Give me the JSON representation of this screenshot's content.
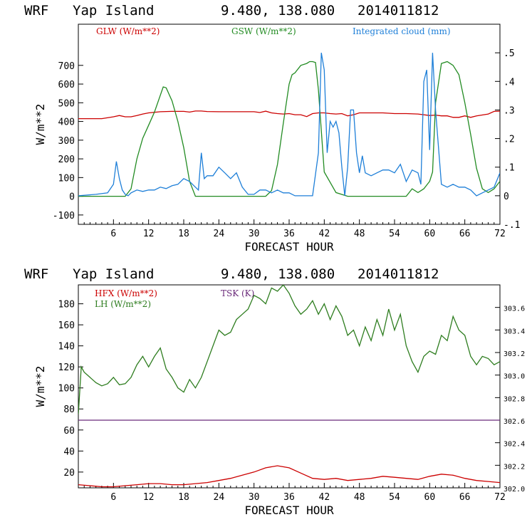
{
  "header": {
    "model": "WRF",
    "location": "Yap Island",
    "coords": "9.480, 138.080",
    "init": "2014011812"
  },
  "chart_data": [
    {
      "type": "line",
      "title": "WRF Yap Island 9.480, 138.080 2014011812",
      "xlabel": "FORECAST HOUR",
      "ylabel": "W/m**2",
      "y2label": "",
      "xlim": [
        0,
        72
      ],
      "ylim": [
        -150,
        920
      ],
      "y2lim": [
        -0.1,
        0.6
      ],
      "xticks": [
        6,
        12,
        18,
        24,
        30,
        36,
        42,
        48,
        54,
        60,
        66,
        72
      ],
      "yticks": [
        -100,
        0,
        100,
        200,
        300,
        400,
        500,
        600,
        700
      ],
      "ytick_labels": [
        "-100",
        "0",
        "100",
        "200",
        "300",
        "400",
        "500",
        "600",
        "700"
      ],
      "y2ticks": [
        -0.1,
        0,
        0.1,
        0.2,
        0.3,
        0.4,
        0.5
      ],
      "y2tick_labels": [
        "-.1",
        "0",
        ".1",
        ".2",
        ".3",
        ".4",
        ".5"
      ],
      "series": [
        {
          "name": "GLW (W/m**2)",
          "color": "#cc0000",
          "axis": "left",
          "x": [
            0,
            4,
            6,
            7,
            8,
            9,
            10,
            11,
            12,
            14,
            16,
            18,
            19,
            20,
            21,
            22,
            24,
            26,
            28,
            30,
            31,
            32,
            33,
            34,
            35,
            36,
            37,
            38,
            39,
            40,
            41,
            42,
            43,
            44,
            45,
            46,
            47,
            48,
            50,
            52,
            54,
            56,
            58,
            60,
            61,
            62,
            63,
            64,
            65,
            66,
            67,
            68,
            70,
            71,
            72
          ],
          "values": [
            415,
            415,
            425,
            432,
            425,
            425,
            432,
            440,
            446,
            452,
            454,
            454,
            450,
            456,
            456,
            453,
            452,
            452,
            452,
            452,
            448,
            455,
            446,
            442,
            440,
            442,
            436,
            436,
            426,
            442,
            446,
            446,
            442,
            440,
            442,
            430,
            436,
            446,
            446,
            446,
            442,
            442,
            440,
            432,
            434,
            430,
            430,
            422,
            422,
            430,
            422,
            430,
            440,
            454,
            455
          ]
        },
        {
          "name": "GSW (W/m**2)",
          "color": "#228b22",
          "axis": "left",
          "x": [
            0,
            8,
            9,
            10,
            11,
            12,
            13,
            14,
            14.5,
            15,
            16,
            17,
            18,
            19,
            20,
            21,
            22,
            24,
            30,
            32,
            33,
            34,
            35,
            36,
            36.5,
            37,
            38,
            39,
            39.5,
            40,
            40.5,
            41,
            42,
            44,
            46,
            48,
            54,
            56,
            57,
            58,
            59,
            60,
            60.5,
            61,
            62,
            63,
            64,
            65,
            66,
            67,
            68,
            69,
            70,
            71,
            72
          ],
          "values": [
            0,
            0,
            40,
            200,
            310,
            380,
            450,
            540,
            585,
            580,
            510,
            400,
            260,
            80,
            0,
            0,
            0,
            0,
            0,
            0,
            30,
            170,
            390,
            600,
            650,
            660,
            700,
            710,
            720,
            720,
            715,
            570,
            130,
            20,
            0,
            0,
            0,
            0,
            40,
            20,
            40,
            80,
            130,
            500,
            710,
            720,
            700,
            650,
            500,
            330,
            150,
            40,
            20,
            40,
            80
          ]
        },
        {
          "name": "Integrated cloud (mm)",
          "color": "#1e7fd8",
          "axis": "right",
          "x": [
            0,
            3,
            5,
            6,
            6.5,
            7,
            7.5,
            8,
            8.5,
            9,
            10,
            11,
            12,
            13,
            14,
            15,
            16,
            17,
            18,
            19,
            20,
            20.5,
            21,
            21.5,
            22,
            23,
            24,
            25,
            26,
            27,
            28,
            29,
            30,
            31,
            32,
            33,
            34,
            35,
            36,
            37,
            38,
            39,
            40,
            41,
            41.5,
            42,
            42.5,
            43,
            43.5,
            44,
            44.5,
            45,
            45.5,
            46,
            46.5,
            47,
            47.5,
            48,
            48.5,
            49,
            50,
            51,
            52,
            53,
            54,
            55,
            56,
            57,
            58,
            58.5,
            59,
            59.5,
            60,
            60.5,
            61,
            62,
            63,
            64,
            65,
            66,
            67,
            68,
            69,
            70,
            71,
            72
          ],
          "values": [
            0,
            0.005,
            0.01,
            0.04,
            0.12,
            0.06,
            0.02,
            0.005,
            0,
            0.01,
            0.02,
            0.015,
            0.02,
            0.02,
            0.03,
            0.025,
            0.035,
            0.04,
            0.06,
            0.05,
            0.03,
            0.02,
            0.15,
            0.06,
            0.07,
            0.07,
            0.1,
            0.08,
            0.06,
            0.08,
            0.03,
            0.005,
            0.005,
            0.02,
            0.02,
            0.01,
            0.02,
            0.01,
            0.01,
            0,
            0,
            0,
            0,
            0.15,
            0.5,
            0.44,
            0.15,
            0.26,
            0.24,
            0.26,
            0.22,
            0.1,
            0,
            0.1,
            0.3,
            0.3,
            0.15,
            0.08,
            0.14,
            0.08,
            0.07,
            0.08,
            0.09,
            0.09,
            0.08,
            0.11,
            0.05,
            0.09,
            0.08,
            0.04,
            0.4,
            0.44,
            0.16,
            0.5,
            0.3,
            0.04,
            0.03,
            0.04,
            0.03,
            0.03,
            0.02,
            0.0,
            0.01,
            0.02,
            0.03,
            0.08
          ]
        }
      ],
      "legend": [
        "GLW (W/m**2)",
        "GSW (W/m**2)",
        "Integrated cloud (mm)"
      ]
    },
    {
      "type": "line",
      "title": "WRF Yap Island 9.480, 138.080 2014011812",
      "xlabel": "FORECAST HOUR",
      "ylabel": "W/m**2",
      "xlim": [
        0,
        72
      ],
      "ylim": [
        5,
        198
      ],
      "y2lim": [
        302.0,
        303.8
      ],
      "xticks": [
        6,
        12,
        18,
        24,
        30,
        36,
        42,
        48,
        54,
        60,
        66,
        72
      ],
      "yticks": [
        20,
        40,
        60,
        80,
        100,
        120,
        140,
        160,
        180
      ],
      "ytick_labels": [
        "20",
        "40",
        "60",
        "80",
        "100",
        "120",
        "140",
        "160",
        "180"
      ],
      "y2ticks": [
        302.0,
        302.2,
        302.4,
        302.6,
        302.8,
        303.0,
        303.2,
        303.4,
        303.6
      ],
      "y2tick_labels": [
        "302.0",
        "302.2",
        "302.4",
        "302.6",
        "302.8",
        "303.0",
        "303.2",
        "303.4",
        "303.6"
      ],
      "series": [
        {
          "name": "HFX (W/m**2)",
          "color": "#cc0000",
          "axis": "left",
          "x": [
            0,
            2,
            4,
            6,
            8,
            10,
            12,
            14,
            16,
            18,
            20,
            22,
            24,
            26,
            28,
            30,
            32,
            34,
            36,
            38,
            40,
            42,
            44,
            46,
            48,
            50,
            52,
            54,
            56,
            58,
            60,
            62,
            64,
            66,
            68,
            70,
            72
          ],
          "values": [
            8,
            7,
            6,
            6,
            7,
            8,
            9,
            9,
            8,
            8,
            9,
            10,
            12,
            14,
            17,
            20,
            24,
            26,
            24,
            19,
            14,
            13,
            14,
            12,
            13,
            14,
            16,
            15,
            14,
            13,
            16,
            18,
            17,
            14,
            12,
            11,
            10
          ]
        },
        {
          "name": "LH (W/m**2)",
          "color": "#2e7d1f",
          "axis": "left",
          "x": [
            0,
            0.5,
            1,
            2,
            3,
            4,
            5,
            6,
            7,
            8,
            9,
            10,
            11,
            12,
            13,
            14,
            15,
            16,
            17,
            18,
            19,
            20,
            21,
            22,
            23,
            24,
            25,
            26,
            27,
            28,
            29,
            30,
            31,
            32,
            33,
            34,
            35,
            36,
            37,
            38,
            39,
            40,
            41,
            42,
            43,
            44,
            45,
            46,
            47,
            48,
            49,
            50,
            51,
            52,
            53,
            54,
            55,
            56,
            57,
            58,
            59,
            60,
            61,
            62,
            63,
            64,
            65,
            66,
            67,
            68,
            69,
            70,
            71,
            72
          ],
          "values": [
            75,
            120,
            115,
            110,
            105,
            102,
            104,
            110,
            103,
            104,
            110,
            122,
            130,
            120,
            130,
            138,
            118,
            110,
            100,
            96,
            108,
            100,
            110,
            125,
            140,
            155,
            150,
            153,
            165,
            170,
            175,
            188,
            185,
            180,
            195,
            192,
            198,
            190,
            178,
            170,
            175,
            183,
            170,
            180,
            165,
            178,
            168,
            150,
            155,
            140,
            158,
            145,
            165,
            150,
            175,
            155,
            170,
            140,
            125,
            115,
            130,
            135,
            132,
            150,
            145,
            168,
            155,
            150,
            130,
            122,
            130,
            128,
            122,
            125
          ]
        },
        {
          "name": "TSK (K)",
          "color": "#6a2a7a",
          "axis": "right",
          "x": [
            0,
            72
          ],
          "values": [
            302.6,
            302.6
          ]
        }
      ],
      "legend": [
        "HFX (W/m**2)",
        "LH (W/m**2)",
        "TSK (K)"
      ]
    }
  ]
}
